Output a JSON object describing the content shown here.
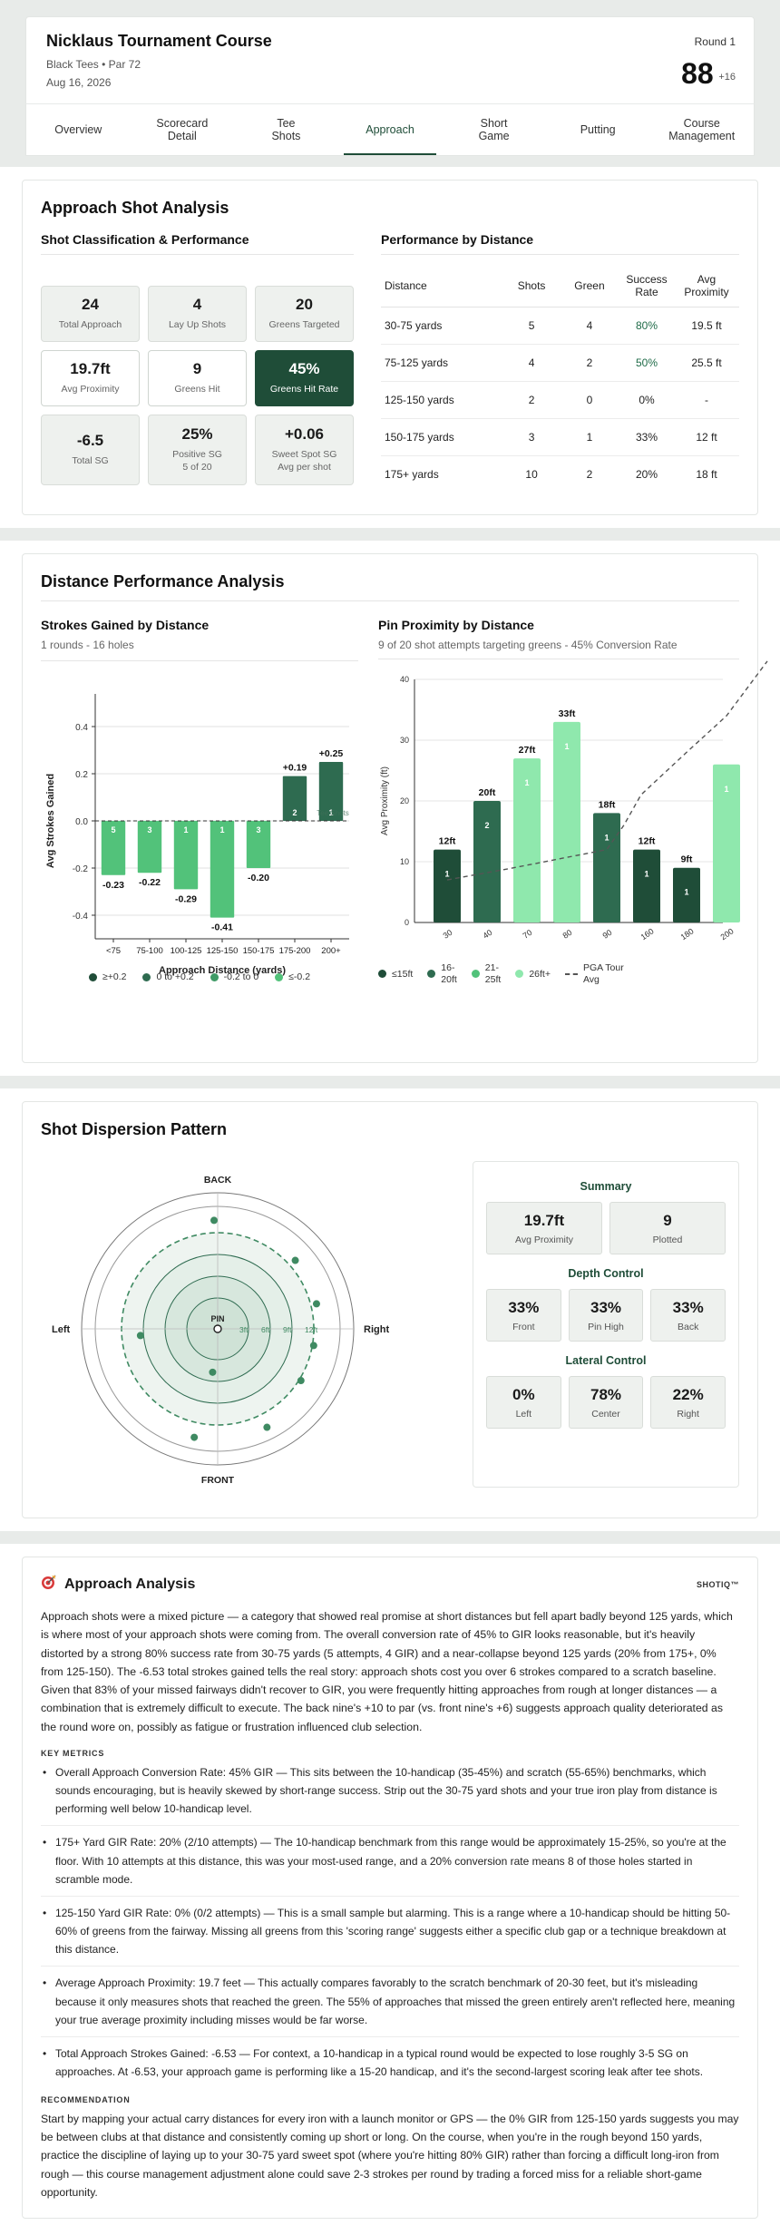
{
  "header": {
    "course": "Nicklaus Tournament Course",
    "tees": "Black Tees • Par 72",
    "date": "Aug 16, 2026",
    "round": "Round 1",
    "score": "88",
    "score_diff": "+16"
  },
  "tabs": [
    {
      "l1": "Overview",
      "l2": ""
    },
    {
      "l1": "Scorecard",
      "l2": "Detail"
    },
    {
      "l1": "Tee",
      "l2": "Shots"
    },
    {
      "l1": "Approach",
      "l2": ""
    },
    {
      "l1": "Short",
      "l2": "Game"
    },
    {
      "l1": "Putting",
      "l2": ""
    },
    {
      "l1": "Course",
      "l2": "Management"
    }
  ],
  "approach": {
    "title": "Approach Shot Analysis",
    "class_title": "Shot Classification & Performance",
    "metrics": [
      {
        "val": "24",
        "lbl": "Total Approach",
        "lbl2": ""
      },
      {
        "val": "4",
        "lbl": "Lay Up Shots",
        "lbl2": ""
      },
      {
        "val": "20",
        "lbl": "Greens Targeted",
        "lbl2": ""
      },
      {
        "val": "19.7ft",
        "lbl": "Avg Proximity",
        "lbl2": ""
      },
      {
        "val": "9",
        "lbl": "Greens Hit",
        "lbl2": ""
      },
      {
        "val": "45%",
        "lbl": "Greens Hit Rate",
        "lbl2": ""
      },
      {
        "val": "-6.5",
        "lbl": "Total SG",
        "lbl2": ""
      },
      {
        "val": "25%",
        "lbl": "Positive SG",
        "lbl2": "5 of 20"
      },
      {
        "val": "+0.06",
        "lbl": "Sweet Spot SG",
        "lbl2": "Avg per shot"
      }
    ],
    "perf_title": "Performance by Distance",
    "table_headers": [
      "Distance",
      "Shots",
      "Green",
      "Success Rate",
      "Avg Proximity"
    ],
    "rows": [
      [
        "30-75 yards",
        "5",
        "4",
        "80%",
        "19.5 ft"
      ],
      [
        "75-125 yards",
        "4",
        "2",
        "50%",
        "25.5 ft"
      ],
      [
        "125-150 yards",
        "2",
        "0",
        "0%",
        "-"
      ],
      [
        "150-175 yards",
        "3",
        "1",
        "33%",
        "12 ft"
      ],
      [
        "175+ yards",
        "10",
        "2",
        "20%",
        "18 ft"
      ]
    ]
  },
  "distance": {
    "title": "Distance Performance Analysis",
    "sg_title": "Strokes Gained by Distance",
    "sg_desc": "1 rounds - 16 holes",
    "pin_title": "Pin Proximity by Distance",
    "pin_desc": "9 of 20 shot attempts targeting greens - 45% Conversion Rate",
    "sg_legend": [
      {
        "label": "≥+0.2",
        "color": "#1f4d38"
      },
      {
        "label": "0 to +0.2",
        "color": "#2e6b50"
      },
      {
        "label": "-0.2 to 0",
        "color": "#3f9a66"
      },
      {
        "label": "≤-0.2",
        "color": "#52c27a"
      }
    ],
    "pin_legend": [
      {
        "label1": "≤15ft",
        "label2": "",
        "color": "#1f4d38"
      },
      {
        "label1": "16-",
        "label2": "20ft",
        "color": "#2e6b50"
      },
      {
        "label1": "21-",
        "label2": "25ft",
        "color": "#52c27a"
      },
      {
        "label1": "26ft+",
        "label2": "",
        "color": "#8fe8ad"
      }
    ],
    "pga_label1": "PGA Tour",
    "pga_label2": "Avg"
  },
  "chart_data": [
    {
      "type": "bar",
      "title": "Strokes Gained by Distance",
      "xlabel": "Approach Distance (yards)",
      "ylabel": "Avg Strokes Gained",
      "ylim": [
        -0.5,
        0.5
      ],
      "yticks": [
        0.4,
        0.2,
        0.0,
        -0.2,
        -0.4
      ],
      "categories": [
        "<75",
        "75-100",
        "100-125",
        "125-150",
        "150-175",
        "175-200",
        "200+"
      ],
      "values": [
        -0.23,
        -0.22,
        -0.29,
        -0.41,
        -0.2,
        0.19,
        0.25
      ],
      "value_labels": [
        "-0.23",
        "-0.22",
        "-0.29",
        "-0.41",
        "-0.20",
        "+0.19",
        "+0.25"
      ],
      "counts": [
        5,
        3,
        1,
        1,
        3,
        2,
        1
      ],
      "colors": [
        "#52c27a",
        "#52c27a",
        "#52c27a",
        "#52c27a",
        "#52c27a",
        "#2e6b50",
        "#2e6b50"
      ],
      "extra_label": "Tee Shots"
    },
    {
      "type": "bar",
      "title": "Pin Proximity by Distance",
      "ylabel": "Avg Proximity (ft)",
      "ylim": [
        0,
        40
      ],
      "yticks": [
        40,
        30,
        20,
        10,
        0
      ],
      "categories": [
        "30",
        "40",
        "70",
        "80",
        "90",
        "160",
        "180",
        "200"
      ],
      "values": [
        12,
        20,
        27,
        33,
        18,
        12,
        9,
        26
      ],
      "value_labels": [
        "12ft",
        "20ft",
        "27ft",
        "33ft",
        "18ft",
        "12ft",
        "9ft",
        ""
      ],
      "counts": [
        1,
        2,
        1,
        1,
        1,
        1,
        1,
        1
      ],
      "colors": [
        "#1f4d38",
        "#2e6b50",
        "#8fe8ad",
        "#8fe8ad",
        "#2e6b50",
        "#1f4d38",
        "#1f4d38",
        "#8fe8ad"
      ],
      "pga_curve": [
        [
          30,
          7
        ],
        [
          60,
          9
        ],
        [
          90,
          12
        ],
        [
          120,
          16
        ],
        [
          150,
          21
        ],
        [
          180,
          28
        ],
        [
          200,
          34
        ],
        [
          230,
          43
        ]
      ]
    }
  ],
  "dispersion": {
    "title": "Shot Dispersion Pattern",
    "labels": {
      "back": "BACK",
      "front": "FRONT",
      "left": "Left",
      "right": "Right",
      "pin": "PIN"
    },
    "ring_labels": [
      "3ft",
      "6ft",
      "9ft",
      "12ft"
    ],
    "summary_title": "Summary",
    "summary": [
      {
        "val": "19.7ft",
        "lbl": "Avg Proximity"
      },
      {
        "val": "9",
        "lbl": "Plotted"
      }
    ],
    "depth_title": "Depth Control",
    "depth": [
      {
        "val": "33%",
        "lbl": "Front"
      },
      {
        "val": "33%",
        "lbl": "Pin High"
      },
      {
        "val": "33%",
        "lbl": "Back"
      }
    ],
    "lateral_title": "Lateral Control",
    "lateral": [
      {
        "val": "0%",
        "lbl": "Left"
      },
      {
        "val": "78%",
        "lbl": "Center"
      },
      {
        "val": "22%",
        "lbl": "Right"
      }
    ]
  },
  "analysis": {
    "title": "Approach Analysis",
    "brand": "SHOTIQ™",
    "intro": "Approach shots were a mixed picture — a category that showed real promise at short distances but fell apart badly beyond 125 yards, which is where most of your approach shots were coming from. The overall conversion rate of 45% to GIR looks reasonable, but it's heavily distorted by a strong 80% success rate from 30-75 yards (5 attempts, 4 GIR) and a near-collapse beyond 125 yards (20% from 175+, 0% from 125-150). The -6.53 total strokes gained tells the real story: approach shots cost you over 6 strokes compared to a scratch baseline. Given that 83% of your missed fairways didn't recover to GIR, you were frequently hitting approaches from rough at longer distances — a combination that is extremely difficult to execute. The back nine's +10 to par (vs. front nine's +6) suggests approach quality deteriorated as the round wore on, possibly as fatigue or frustration influenced club selection.",
    "metrics_label": "KEY METRICS",
    "metrics": [
      "Overall Approach Conversion Rate: 45% GIR — This sits between the 10-handicap (35-45%) and scratch (55-65%) benchmarks, which sounds encouraging, but is heavily skewed by short-range success. Strip out the 30-75 yard shots and your true iron play from distance is performing well below 10-handicap level.",
      "175+ Yard GIR Rate: 20% (2/10 attempts) — The 10-handicap benchmark from this range would be approximately 15-25%, so you're at the floor. With 10 attempts at this distance, this was your most-used range, and a 20% conversion rate means 8 of those holes started in scramble mode.",
      "125-150 Yard GIR Rate: 0% (0/2 attempts) — This is a small sample but alarming. This is a range where a 10-handicap should be hitting 50-60% of greens from the fairway. Missing all greens from this 'scoring range' suggests either a specific club gap or a technique breakdown at this distance.",
      "Average Approach Proximity: 19.7 feet — This actually compares favorably to the scratch benchmark of 20-30 feet, but it's misleading because it only measures shots that reached the green. The 55% of approaches that missed the green entirely aren't reflected here, meaning your true average proximity including misses would be far worse.",
      "Total Approach Strokes Gained: -6.53 — For context, a 10-handicap in a typical round would be expected to lose roughly 3-5 SG on approaches. At -6.53, your approach game is performing like a 15-20 handicap, and it's the second-largest scoring leak after tee shots."
    ],
    "rec_label": "RECOMMENDATION",
    "rec": "Start by mapping your actual carry distances for every iron with a launch monitor or GPS — the 0% GIR from 125-150 yards suggests you may be between clubs at that distance and consistently coming up short or long. On the course, when you're in the rough beyond 150 yards, practice the discipline of laying up to your 30-75 yard sweet spot (where you're hitting 80% GIR) rather than forcing a difficult long-iron from rough — this course management adjustment alone could save 2-3 strokes per round by trading a forced miss for a reliable short-game opportunity."
  }
}
